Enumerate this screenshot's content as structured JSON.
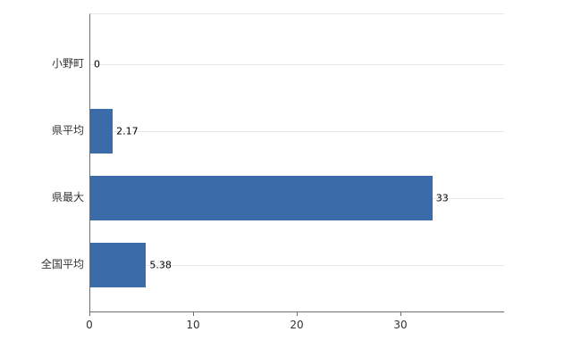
{
  "chart_data": {
    "type": "bar",
    "orientation": "horizontal",
    "title": "",
    "xlabel": "",
    "ylabel": "",
    "categories": [
      "小野町",
      "県平均",
      "県最大",
      "全国平均"
    ],
    "values": [
      0,
      2.17,
      33,
      5.38
    ],
    "value_labels": [
      "0",
      "2.17",
      "33",
      "5.38"
    ],
    "x_ticks": [
      0,
      10,
      20,
      30
    ],
    "xlim": [
      0,
      40
    ],
    "grid": true,
    "legend_position": "none",
    "bar_color": "#3b6ba8",
    "axis_color": "#6e6e6e",
    "grid_color": "#e6e6e6",
    "category_label_color": "#333333",
    "tick_label_color": "#333333",
    "value_label_color": "#000000"
  }
}
